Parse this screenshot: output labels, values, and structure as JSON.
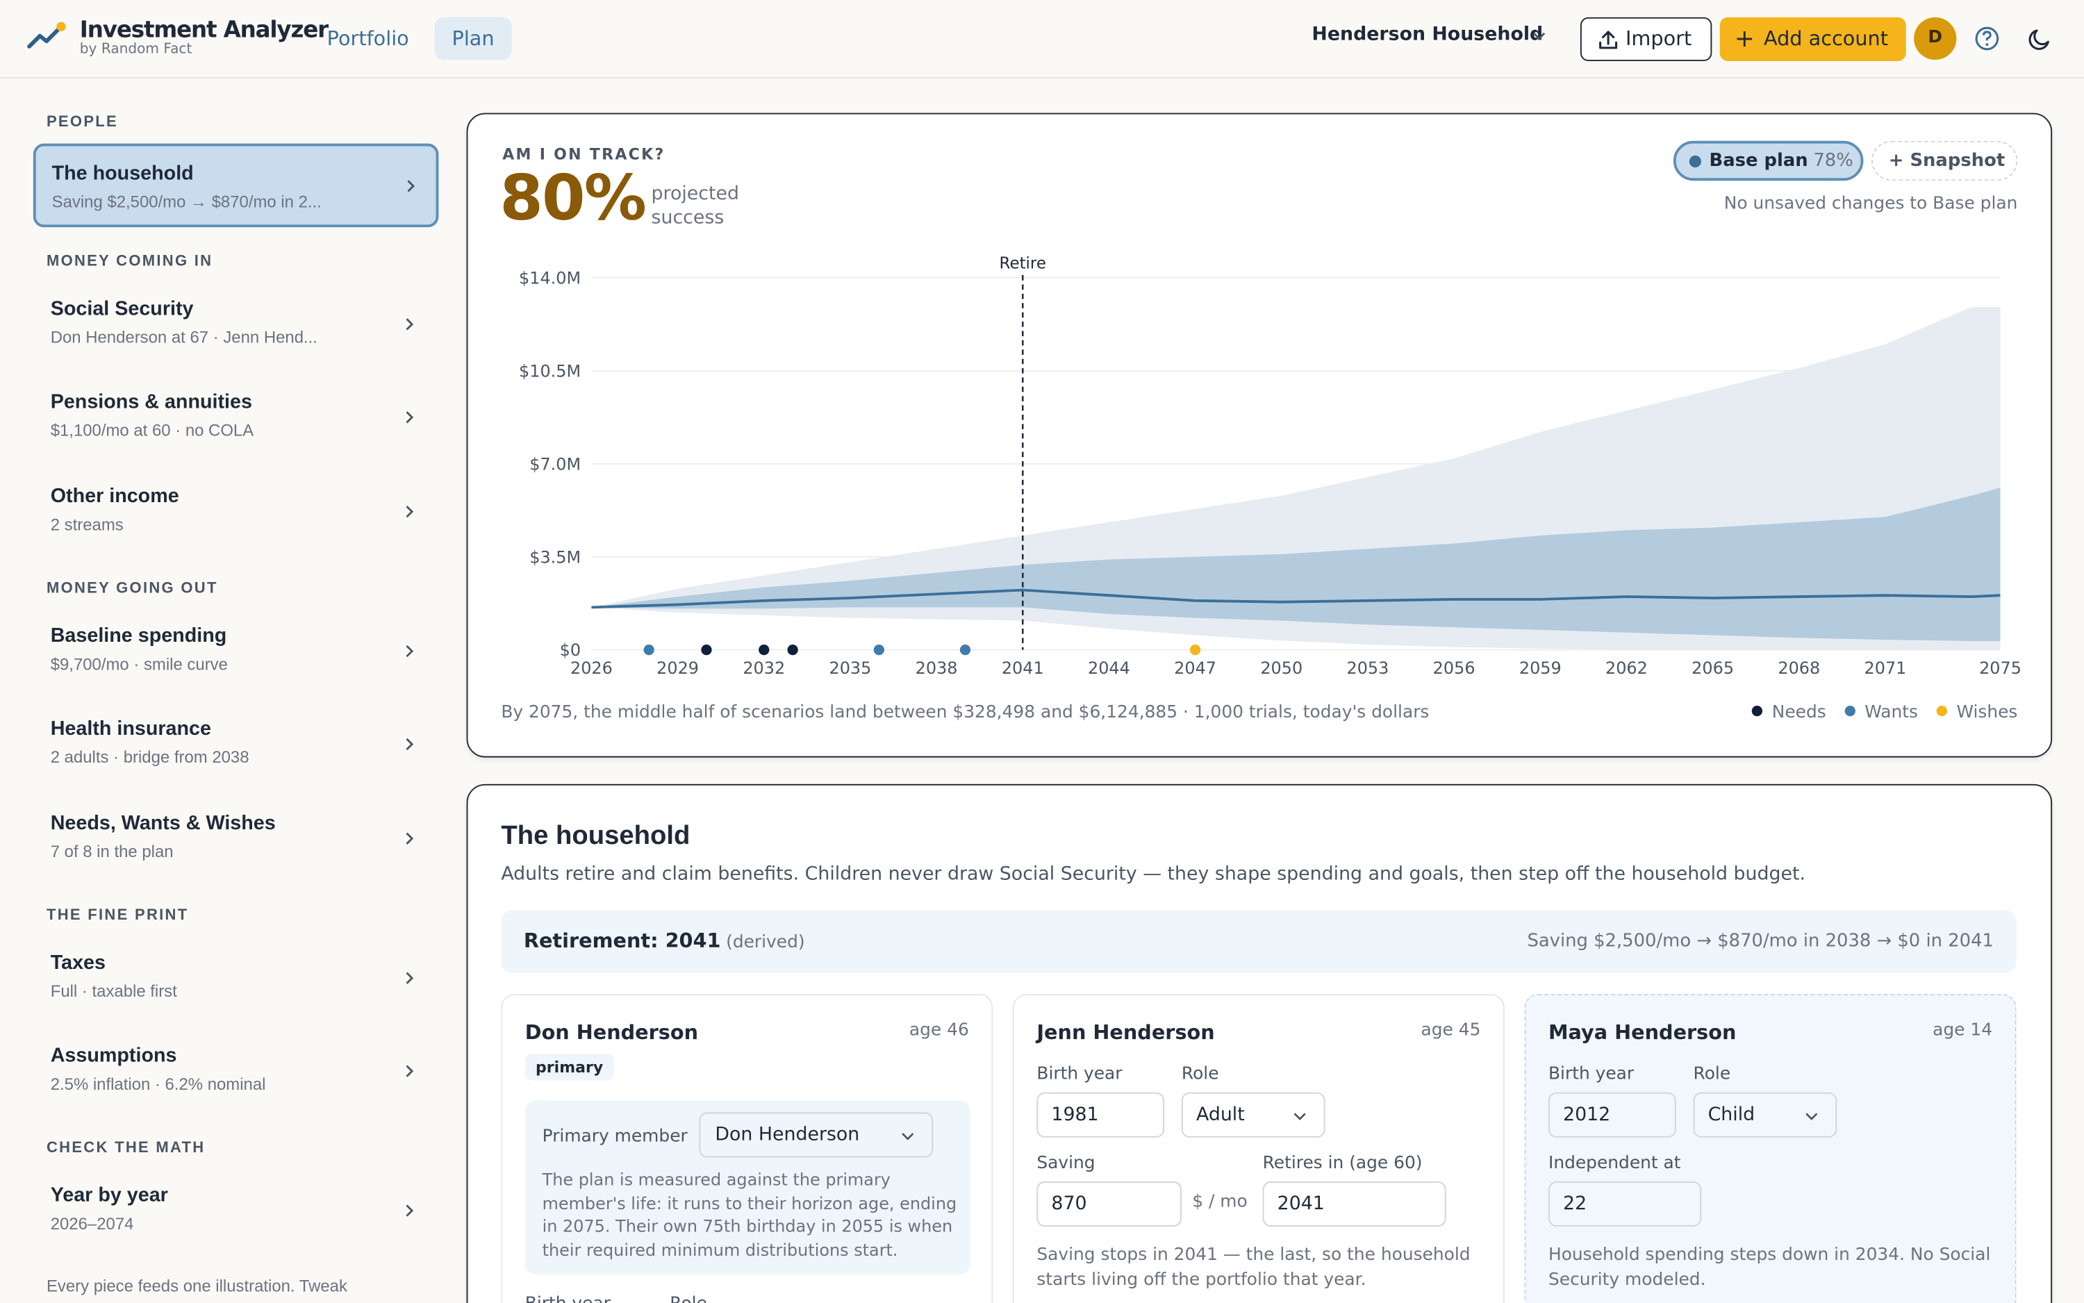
{
  "app": {
    "title": "Investment Analyzer",
    "subtitle": "by Random Fact"
  },
  "nav": {
    "tabs": [
      {
        "label": "Portfolio"
      },
      {
        "label": "Plan"
      }
    ]
  },
  "header": {
    "household": "Henderson Household",
    "import_label": "Import",
    "add_account_label": "Add account",
    "avatar_initial": "D"
  },
  "sidebar": {
    "sections": [
      {
        "title": "PEOPLE",
        "items": [
          {
            "title": "The household",
            "sub": "Saving $2,500/mo → $870/mo in 2..."
          }
        ]
      },
      {
        "title": "MONEY COMING IN",
        "items": [
          {
            "title": "Social Security",
            "sub": "Don Henderson at 67 · Jenn Hend..."
          },
          {
            "title": "Pensions & annuities",
            "sub": "$1,100/mo at 60 · no COLA"
          },
          {
            "title": "Other income",
            "sub": "2 streams"
          }
        ]
      },
      {
        "title": "MONEY GOING OUT",
        "items": [
          {
            "title": "Baseline spending",
            "sub": "$9,700/mo · smile curve"
          },
          {
            "title": "Health insurance",
            "sub": "2 adults · bridge from 2038"
          },
          {
            "title": "Needs, Wants & Wishes",
            "sub": "7 of 8 in the plan"
          }
        ]
      },
      {
        "title": "THE FINE PRINT",
        "items": [
          {
            "title": "Taxes",
            "sub": "Full · taxable first"
          },
          {
            "title": "Assumptions",
            "sub": "2.5% inflation · 6.2% nominal"
          }
        ]
      },
      {
        "title": "CHECK THE MATH",
        "items": [
          {
            "title": "Year by year",
            "sub": "2026–2074"
          }
        ]
      }
    ],
    "footer": "Every piece feeds one illustration. Tweak"
  },
  "track": {
    "heading": "AM I ON TRACK?",
    "percent": "80%",
    "percent_label": "projected success",
    "base_plan_label": "Base plan",
    "base_plan_pct": "78%",
    "snapshot_label": "Snapshot",
    "unsaved": "No unsaved changes to Base plan",
    "summary": "By 2075, the middle half of scenarios land between $328,498 and $6,124,885 · 1,000 trials, today's dollars",
    "legend": [
      {
        "label": "Needs",
        "color": "#0f1f3d"
      },
      {
        "label": "Wants",
        "color": "#3f7cab"
      },
      {
        "label": "Wishes",
        "color": "#f4b41a"
      }
    ]
  },
  "chart_data": {
    "type": "area",
    "x_ticks": [
      "2026",
      "2029",
      "2032",
      "2035",
      "2038",
      "2041",
      "2044",
      "2047",
      "2050",
      "2053",
      "2056",
      "2059",
      "2062",
      "2065",
      "2068",
      "2071",
      "2075"
    ],
    "y_ticks": [
      "$0",
      "$3.5M",
      "$7.0M",
      "$10.5M",
      "$14.0M"
    ],
    "ylim": [
      0,
      14
    ],
    "yunit": "$M",
    "xlim": [
      2026,
      2075
    ],
    "annotation": {
      "x": 2041,
      "label": "Retire"
    },
    "series": [
      {
        "name": "",
        "role": "p90",
        "x": [
          2026,
          2029,
          2032,
          2035,
          2038,
          2041,
          2044,
          2047,
          2050,
          2053,
          2056,
          2059,
          2062,
          2065,
          2068,
          2071,
          2074,
          2075
        ],
        "values": [
          1.6,
          2.3,
          2.8,
          3.3,
          3.8,
          4.3,
          4.8,
          5.3,
          5.8,
          6.5,
          7.2,
          8.2,
          9.0,
          9.8,
          10.6,
          11.5,
          12.9,
          12.9
        ]
      },
      {
        "name": "",
        "role": "p75",
        "x": [
          2026,
          2029,
          2032,
          2035,
          2038,
          2041,
          2044,
          2047,
          2050,
          2053,
          2056,
          2059,
          2062,
          2065,
          2068,
          2071,
          2074,
          2075
        ],
        "values": [
          1.6,
          2.0,
          2.35,
          2.6,
          2.9,
          3.2,
          3.4,
          3.5,
          3.6,
          3.8,
          4.0,
          4.3,
          4.5,
          4.6,
          4.8,
          5.0,
          5.8,
          6.1
        ]
      },
      {
        "name": "",
        "role": "median",
        "x": [
          2026,
          2029,
          2032,
          2035,
          2038,
          2041,
          2044,
          2047,
          2050,
          2053,
          2056,
          2059,
          2062,
          2065,
          2068,
          2071,
          2074,
          2075
        ],
        "values": [
          1.6,
          1.7,
          1.85,
          1.95,
          2.1,
          2.25,
          2.05,
          1.85,
          1.8,
          1.85,
          1.9,
          1.9,
          2.0,
          1.95,
          2.0,
          2.05,
          2.0,
          2.05
        ]
      },
      {
        "name": "",
        "role": "p25",
        "x": [
          2026,
          2029,
          2032,
          2035,
          2038,
          2041,
          2044,
          2047,
          2050,
          2053,
          2056,
          2059,
          2062,
          2065,
          2068,
          2071,
          2074,
          2075
        ],
        "values": [
          1.6,
          1.55,
          1.55,
          1.6,
          1.6,
          1.6,
          1.35,
          1.2,
          1.1,
          0.95,
          0.85,
          0.75,
          0.65,
          0.55,
          0.45,
          0.38,
          0.33,
          0.33
        ]
      },
      {
        "name": "",
        "role": "p10",
        "x": [
          2026,
          2029,
          2032,
          2035,
          2038,
          2041,
          2044,
          2047,
          2050,
          2053,
          2056,
          2059,
          2062,
          2065,
          2068,
          2071,
          2074,
          2075
        ],
        "values": [
          1.6,
          1.4,
          1.3,
          1.2,
          1.15,
          1.1,
          0.8,
          0.55,
          0.35,
          0.2,
          0.1,
          0.05,
          0,
          0,
          0,
          0,
          0,
          0
        ]
      }
    ],
    "goals": [
      {
        "x": 2028,
        "kind": "Wants"
      },
      {
        "x": 2030,
        "kind": "Needs"
      },
      {
        "x": 2032,
        "kind": "Needs"
      },
      {
        "x": 2033,
        "kind": "Needs"
      },
      {
        "x": 2036,
        "kind": "Wants"
      },
      {
        "x": 2039,
        "kind": "Wants"
      },
      {
        "x": 2047,
        "kind": "Wishes"
      }
    ],
    "colors": {
      "outer": "#e6ecf2",
      "inner": "#b3cbdd",
      "median": "#3b6f9a",
      "Needs": "#0f1f3d",
      "Wants": "#3f7cab",
      "Wishes": "#f4b41a"
    }
  },
  "household": {
    "title": "The household",
    "desc": "Adults retire and claim benefits. Children never draw Social Security — they shape spending and goals, then step off the household budget.",
    "retirement_label": "Retirement: 2041",
    "retirement_note": "(derived)",
    "saving_summary": "Saving $2,500/mo → $870/mo in 2038 → $0 in 2041",
    "members": [
      {
        "name": "Don Henderson",
        "age": "age 46",
        "tag": "primary",
        "primary_label": "Primary member",
        "primary_value": "Don Henderson",
        "primary_note": "The plan is measured against the primary member's life: it runs to their horizon age, ending in 2075. Their own 75th birthday in 2055 is when their required minimum distributions start.",
        "birth_label": "Birth year",
        "role_label": "Role"
      },
      {
        "name": "Jenn Henderson",
        "age": "age 45",
        "birth_label": "Birth year",
        "birth_value": "1981",
        "role_label": "Role",
        "role_value": "Adult",
        "saving_label": "Saving",
        "saving_value": "870",
        "saving_unit": "$ / mo",
        "retire_label": "Retires in (age 60)",
        "retire_value": "2041",
        "note": "Saving stops in 2041 — the last, so the household starts living off the portfolio that year."
      },
      {
        "name": "Maya Henderson",
        "age": "age 14",
        "birth_label": "Birth year",
        "birth_value": "2012",
        "role_label": "Role",
        "role_value": "Child",
        "indep_label": "Independent at",
        "indep_value": "22",
        "note": "Household spending steps down in 2034. No Social Security modeled."
      }
    ]
  }
}
